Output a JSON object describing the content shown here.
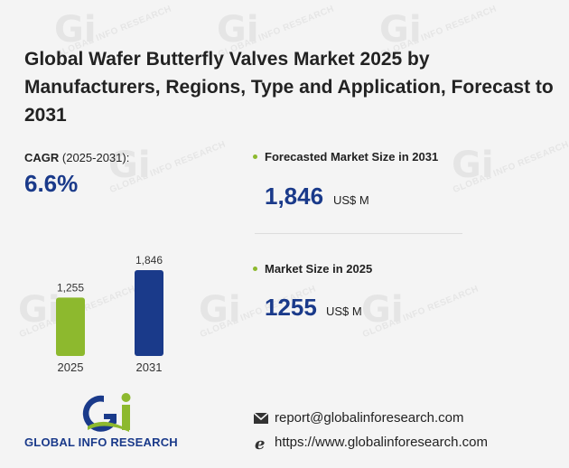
{
  "title": "Global Wafer Butterfly Valves Market 2025 by Manufacturers, Regions, Type and Application, Forecast to 2031",
  "cagr": {
    "label_bold": "CAGR",
    "label_rest": " (2025-2031):",
    "value": "6.6%"
  },
  "forecast": {
    "label": "Forecasted Market Size in 2031",
    "value": "1,846",
    "unit": "US$ M"
  },
  "current": {
    "label": "Market Size in 2025",
    "value": "1255",
    "unit": "US$ M"
  },
  "chart_data": {
    "type": "bar",
    "categories": [
      "2025",
      "2031"
    ],
    "values": [
      1255,
      1846
    ],
    "data_labels": [
      "1,255",
      "1,846"
    ],
    "colors": [
      "#8db92e",
      "#1a3a8a"
    ],
    "ylim": [
      0,
      1846
    ]
  },
  "logo": {
    "text": "GLOBAL INFO RESEARCH"
  },
  "contact": {
    "email": "report@globalinforesearch.com",
    "website": "https://www.globalinforesearch.com"
  },
  "watermark": "GLOBAL INFO RESEARCH",
  "colors": {
    "accent_blue": "#1a3a8a",
    "accent_green": "#8db92e"
  }
}
